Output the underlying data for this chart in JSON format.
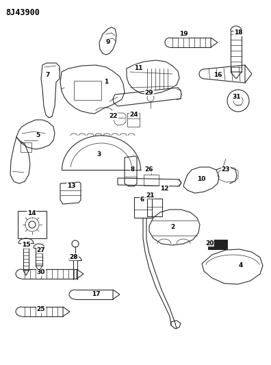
{
  "title": "8J43900",
  "bg": "#f5f5f0",
  "lc": "#2a2a2a",
  "fig_w": 3.96,
  "fig_h": 5.33,
  "dpi": 100
}
